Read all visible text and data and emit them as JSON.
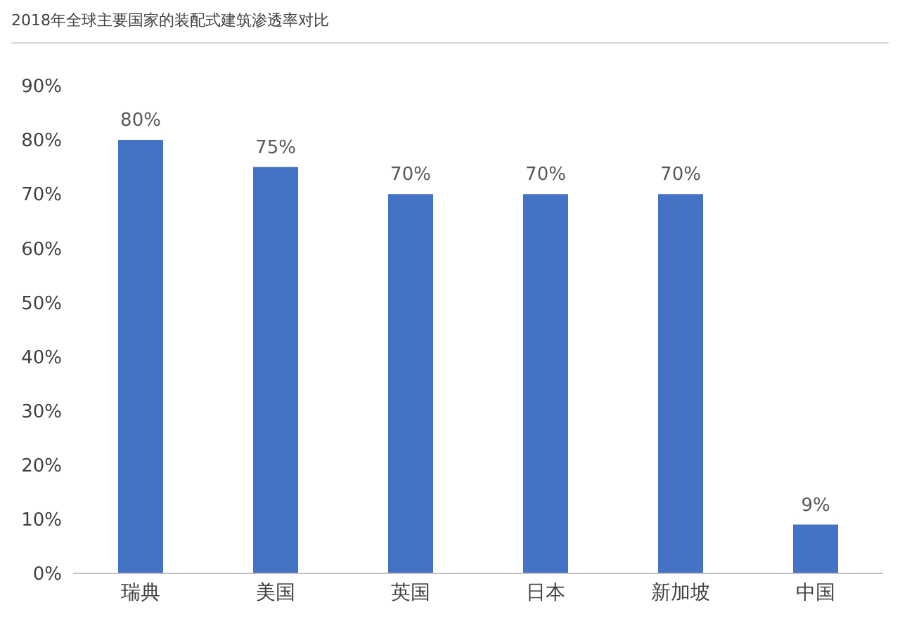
{
  "chart_data": {
    "type": "bar",
    "title": "2018年全球主要国家的装配式建筑渗透率对比",
    "categories": [
      "瑞典",
      "美国",
      "英国",
      "日本",
      "新加坡",
      "中国"
    ],
    "values": [
      80,
      75,
      70,
      70,
      70,
      9
    ],
    "value_labels": [
      "80%",
      "75%",
      "70%",
      "70%",
      "70%",
      "9%"
    ],
    "color": "#4472c4",
    "ylim": [
      0,
      90
    ],
    "yticks": [
      {
        "value": 0,
        "label": "0%"
      },
      {
        "value": 10,
        "label": "10%"
      },
      {
        "value": 20,
        "label": "20%"
      },
      {
        "value": 30,
        "label": "30%"
      },
      {
        "value": 40,
        "label": "40%"
      },
      {
        "value": 50,
        "label": "50%"
      },
      {
        "value": 60,
        "label": "60%"
      },
      {
        "value": 70,
        "label": "70%"
      },
      {
        "value": 80,
        "label": "80%"
      },
      {
        "value": 90,
        "label": "90%"
      }
    ],
    "grid": false,
    "legend": false
  }
}
